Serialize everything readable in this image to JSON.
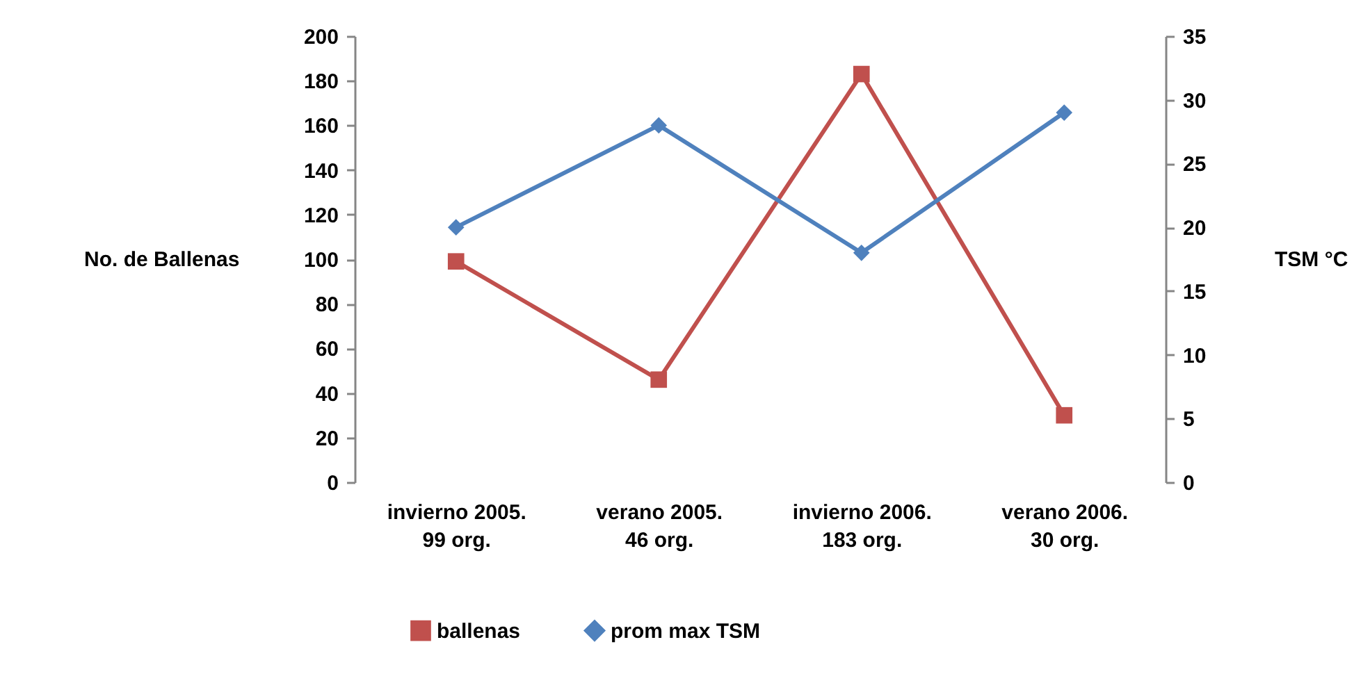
{
  "chart_data": {
    "type": "line",
    "categories": [
      "invierno 2005.\n99 org.",
      "verano 2005.\n46 org.",
      "invierno 2006.\n183 org.",
      "verano 2006.\n30 org."
    ],
    "series": [
      {
        "name": "ballenas",
        "color": "#c0504d",
        "marker": "square",
        "values": [
          99,
          46,
          183,
          30
        ]
      },
      {
        "name": "prom max TSM",
        "color": "#4f81bd",
        "marker": "diamond",
        "axis": "y2",
        "values": [
          20,
          28,
          18,
          29
        ]
      }
    ],
    "ylabel": "No. de Ballenas",
    "y2label": "TSM °C",
    "ylim": [
      0,
      200
    ],
    "yticks": [
      0,
      20,
      40,
      60,
      80,
      100,
      120,
      140,
      160,
      180,
      200
    ],
    "y2lim": [
      0,
      35
    ],
    "y2ticks": [
      0,
      5,
      10,
      15,
      20,
      25,
      30,
      35
    ],
    "grid": false,
    "legend": "bottom"
  }
}
